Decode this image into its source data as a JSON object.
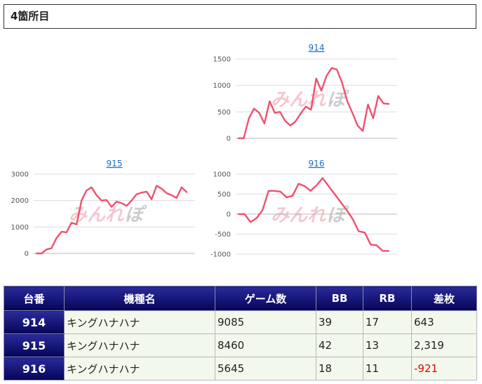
{
  "section": {
    "title": "4箇所目"
  },
  "watermark": {
    "part1": "みんれ",
    "part2": "ぽ"
  },
  "chart_data": [
    {
      "type": "line",
      "title": "914",
      "ylim": [
        0,
        1500
      ],
      "yticks": [
        0,
        500,
        1000,
        1500
      ],
      "ytick_labels": [
        "0",
        "500",
        "1000",
        "1500"
      ],
      "grid": true,
      "color": "#f0506e",
      "series": [
        {
          "values": [
            0,
            0,
            380,
            560,
            480,
            280,
            700,
            480,
            500,
            330,
            240,
            320,
            470,
            600,
            540,
            1130,
            900,
            1180,
            1330,
            1300,
            1050,
            700,
            480,
            240,
            140,
            640,
            380,
            800,
            660,
            650
          ]
        }
      ]
    },
    {
      "type": "line",
      "title": "915",
      "ylim": [
        0,
        3000
      ],
      "yticks": [
        0,
        1000,
        2000,
        3000
      ],
      "ytick_labels": [
        "0",
        "1000",
        "2000",
        "3000"
      ],
      "grid": true,
      "color": "#f0506e",
      "series": [
        {
          "values": [
            0,
            0,
            150,
            200,
            580,
            820,
            800,
            1160,
            1100,
            2000,
            2380,
            2500,
            2200,
            2000,
            2020,
            1760,
            1960,
            1900,
            1800,
            2000,
            2240,
            2300,
            2340,
            2050,
            2560,
            2450,
            2280,
            2200,
            2100,
            2500,
            2320
          ]
        }
      ]
    },
    {
      "type": "line",
      "title": "916",
      "ylim": [
        -1000,
        1000
      ],
      "yticks": [
        -1000,
        -500,
        0,
        500,
        1000
      ],
      "ytick_labels": [
        "-1000",
        "-500",
        "0",
        "500",
        "1000"
      ],
      "grid": true,
      "color": "#f0506e",
      "series": [
        {
          "values": [
            0,
            0,
            -200,
            -100,
            100,
            580,
            580,
            560,
            420,
            460,
            760,
            700,
            580,
            720,
            900,
            700,
            500,
            300,
            100,
            -120,
            -430,
            -460,
            -760,
            -780,
            -920,
            -920
          ]
        }
      ]
    }
  ],
  "table": {
    "headers": [
      "台番",
      "機種名",
      "ゲーム数",
      "BB",
      "RB",
      "差枚"
    ],
    "rows": [
      {
        "number": "914",
        "machine": "キングハナハナ",
        "games": "9085",
        "bb": "39",
        "rb": "17",
        "diff": "643",
        "negative": false
      },
      {
        "number": "915",
        "machine": "キングハナハナ",
        "games": "8460",
        "bb": "42",
        "rb": "13",
        "diff": "2,319",
        "negative": false
      },
      {
        "number": "916",
        "machine": "キングハナハナ",
        "games": "5645",
        "bb": "18",
        "rb": "11",
        "diff": "-921",
        "negative": true
      }
    ]
  }
}
